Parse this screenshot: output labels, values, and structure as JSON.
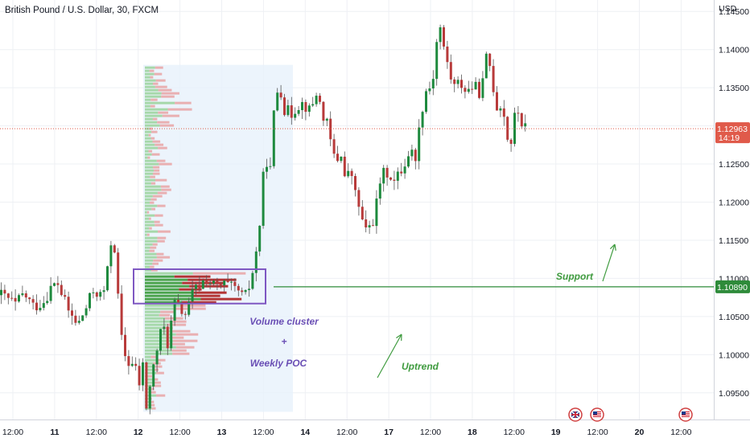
{
  "header": {
    "title": "British Pound / U.S. Dollar, 30, FXCM",
    "currency": "USD"
  },
  "colors": {
    "up": "#26a69a",
    "up_dark": "#1e8a3e",
    "down": "#b83a3a",
    "grid": "#eef0f4",
    "profile_bg": "#e7f1fb",
    "cluster_box": "#7e57c2",
    "annotation_purple": "#6a4fb5",
    "annotation_green": "#3f9b3f",
    "price_label": "#e05a4a",
    "support_label": "#2e8b3a",
    "profile_up": "#8fcf8f",
    "profile_down": "#e89a9a",
    "poc_down": "#b02a2a",
    "poc_up": "#3a9a3a"
  },
  "price_tag": {
    "price": "1.12963",
    "countdown": "14:19",
    "value": 1.12963
  },
  "support_tag": {
    "price": "1.10890",
    "value": 1.1089
  },
  "annotations": {
    "volume_cluster": "Volume cluster",
    "plus": "+",
    "weekly_poc": "Weekly POC",
    "uptrend": "Uptrend",
    "support": "Support"
  },
  "event_icons": [
    "uk-flag-icon",
    "us-flag-icon",
    "us-flag-icon"
  ],
  "chart_data": {
    "type": "candlestick",
    "title": "British Pound / U.S. Dollar, 30, FXCM",
    "ylabel": "USD",
    "ylim": [
      1.0915,
      1.1465
    ],
    "y_ticks": [
      "1.14500",
      "1.14000",
      "1.13500",
      "1.13000",
      "1.12500",
      "1.12000",
      "1.11500",
      "1.11000",
      "1.10500",
      "1.10000",
      "1.09500"
    ],
    "x_ticks": [
      "12:00",
      "11",
      "12:00",
      "12",
      "12:00",
      "13",
      "12:00",
      "14",
      "12:00",
      "17",
      "12:00",
      "18",
      "12:00",
      "19",
      "12:00",
      "20",
      "12:00"
    ],
    "close_path": [
      [
        0,
        1.1078
      ],
      [
        10,
        1.1072
      ],
      [
        18,
        1.1065
      ],
      [
        28,
        1.108
      ],
      [
        40,
        1.1063
      ],
      [
        52,
        1.1069
      ],
      [
        62,
        1.1088
      ],
      [
        70,
        1.1094
      ],
      [
        82,
        1.106
      ],
      [
        95,
        1.1038
      ],
      [
        105,
        1.106
      ],
      [
        115,
        1.1085
      ],
      [
        126,
        1.1075
      ],
      [
        134,
        1.112
      ],
      [
        138,
        1.1165
      ],
      [
        142,
        1.113
      ],
      [
        146,
        1.106
      ],
      [
        151,
        1.1005
      ],
      [
        158,
        1.099
      ],
      [
        166,
        1.0985
      ],
      [
        172,
        1.096
      ],
      [
        176,
        1.0985
      ],
      [
        180,
        1.093
      ],
      [
        186,
        1.0965
      ],
      [
        193,
        1.1005
      ],
      [
        201,
        1.104
      ],
      [
        208,
        1.101
      ],
      [
        214,
        1.1068
      ],
      [
        222,
        1.106
      ],
      [
        230,
        1.1052
      ],
      [
        238,
        1.1082
      ],
      [
        246,
        1.109
      ],
      [
        254,
        1.11
      ],
      [
        262,
        1.1092
      ],
      [
        270,
        1.1088
      ],
      [
        278,
        1.1092
      ],
      [
        286,
        1.1087
      ],
      [
        294,
        1.1084
      ],
      [
        302,
        1.1072
      ],
      [
        310,
        1.1095
      ],
      [
        318,
        1.114
      ],
      [
        322,
        1.118
      ],
      [
        328,
        1.1265
      ],
      [
        334,
        1.1235
      ],
      [
        340,
        1.1335
      ],
      [
        346,
        1.1355
      ],
      [
        352,
        1.1322
      ],
      [
        360,
        1.1315
      ],
      [
        368,
        1.1328
      ],
      [
        376,
        1.133
      ],
      [
        384,
        1.1318
      ],
      [
        392,
        1.1345
      ],
      [
        398,
        1.132
      ],
      [
        404,
        1.1305
      ],
      [
        410,
        1.1275
      ],
      [
        416,
        1.125
      ],
      [
        422,
        1.1268
      ],
      [
        428,
        1.1225
      ],
      [
        434,
        1.1245
      ],
      [
        440,
        1.121
      ],
      [
        446,
        1.119
      ],
      [
        452,
        1.1158
      ],
      [
        458,
        1.117
      ],
      [
        464,
        1.118
      ],
      [
        470,
        1.1225
      ],
      [
        476,
        1.1238
      ],
      [
        482,
        1.124
      ],
      [
        488,
        1.1225
      ],
      [
        496,
        1.124
      ],
      [
        502,
        1.1252
      ],
      [
        508,
        1.127
      ],
      [
        514,
        1.1255
      ],
      [
        520,
        1.13
      ],
      [
        526,
        1.1345
      ],
      [
        532,
        1.135
      ],
      [
        538,
        1.137
      ],
      [
        542,
        1.142
      ],
      [
        546,
        1.143
      ],
      [
        550,
        1.14
      ],
      [
        554,
        1.1385
      ],
      [
        558,
        1.1365
      ],
      [
        564,
        1.135
      ],
      [
        570,
        1.1358
      ],
      [
        578,
        1.1345
      ],
      [
        586,
        1.1352
      ],
      [
        594,
        1.1345
      ],
      [
        600,
        1.136
      ],
      [
        604,
        1.14
      ],
      [
        610,
        1.136
      ],
      [
        616,
        1.1325
      ],
      [
        622,
        1.133
      ],
      [
        628,
        1.1295
      ],
      [
        632,
        1.1262
      ],
      [
        636,
        1.1305
      ],
      [
        642,
        1.132
      ],
      [
        648,
        1.13
      ],
      [
        652,
        1.1296
      ]
    ],
    "annotation_levels": {
      "support": 1.1089,
      "cluster_top": 1.1112,
      "cluster_bottom": 1.1067,
      "profile_top": 1.138,
      "profile_bottom": 1.0925
    }
  }
}
